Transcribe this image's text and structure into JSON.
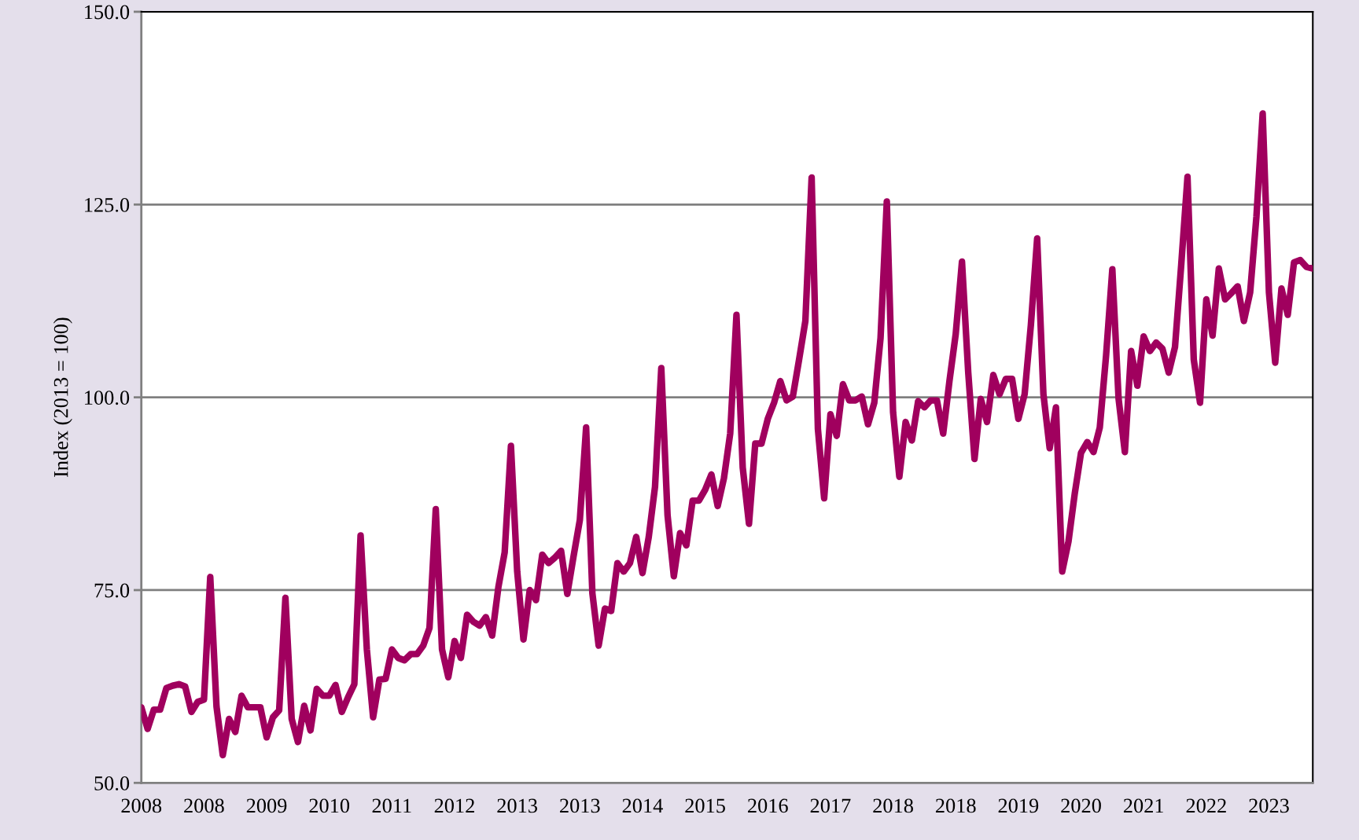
{
  "chart_data": {
    "type": "line",
    "ylabel": "Index (2013 = 100)",
    "categories": [
      "2008",
      null,
      null,
      null,
      null,
      null,
      null,
      null,
      null,
      null,
      "2008",
      null,
      null,
      null,
      null,
      null,
      null,
      null,
      null,
      null,
      "2009",
      null,
      null,
      null,
      null,
      null,
      null,
      null,
      null,
      null,
      "2010",
      null,
      null,
      null,
      null,
      null,
      null,
      null,
      null,
      null,
      "2011",
      null,
      null,
      null,
      null,
      null,
      null,
      null,
      null,
      null,
      "2012",
      null,
      null,
      null,
      null,
      null,
      null,
      null,
      null,
      null,
      "2013",
      null,
      null,
      null,
      null,
      null,
      null,
      null,
      null,
      null,
      "2013",
      null,
      null,
      null,
      null,
      null,
      null,
      null,
      null,
      null,
      "2014",
      null,
      null,
      null,
      null,
      null,
      null,
      null,
      null,
      null,
      "2015",
      null,
      null,
      null,
      null,
      null,
      null,
      null,
      null,
      null,
      "2016",
      null,
      null,
      null,
      null,
      null,
      null,
      null,
      null,
      null,
      "2017",
      null,
      null,
      null,
      null,
      null,
      null,
      null,
      null,
      null,
      "2018",
      null,
      null,
      null,
      null,
      null,
      null,
      null,
      null,
      null,
      "2018",
      null,
      null,
      null,
      null,
      null,
      null,
      null,
      null,
      null,
      "2019",
      null,
      null,
      null,
      null,
      null,
      null,
      null,
      null,
      null,
      "2020",
      null,
      null,
      null,
      null,
      null,
      null,
      null,
      null,
      null,
      "2021",
      null,
      null,
      null,
      null,
      null,
      null,
      null,
      null,
      null,
      "2022",
      null,
      null,
      null,
      null,
      null,
      null,
      null,
      null,
      null,
      "2023",
      null,
      null,
      null,
      null,
      null,
      null,
      null
    ],
    "series": [
      {
        "color": "#a0005e",
        "values": [
          59.8,
          57.0,
          59.5,
          59.5,
          62.3,
          62.6,
          62.8,
          62.5,
          59.2,
          60.5,
          60.8,
          76.7,
          59.9,
          53.6,
          58.3,
          56.6,
          61.3,
          59.8,
          59.8,
          59.8,
          55.9,
          58.5,
          59.4,
          74.0,
          58.3,
          55.3,
          60.0,
          56.8,
          62.2,
          61.3,
          61.3,
          62.7,
          59.2,
          61.1,
          62.8,
          82.1,
          67.3,
          58.5,
          63.4,
          63.5,
          67.3,
          66.2,
          65.9,
          66.7,
          66.7,
          67.8,
          70.1,
          85.5,
          67.3,
          63.7,
          68.4,
          66.2,
          71.8,
          70.9,
          70.4,
          71.5,
          69.1,
          75.4,
          79.9,
          93.7,
          77.4,
          68.6,
          75.0,
          73.7,
          79.6,
          78.5,
          79.2,
          80.1,
          74.5,
          79.4,
          84.1,
          96.1,
          74.6,
          67.8,
          72.6,
          72.3,
          78.5,
          77.4,
          78.5,
          81.9,
          77.2,
          81.9,
          88.4,
          103.8,
          84.7,
          76.8,
          82.4,
          80.8,
          86.6,
          86.6,
          88.0,
          90.0,
          85.9,
          89.5,
          95.3,
          110.7,
          90.9,
          83.6,
          94.0,
          94.0,
          97.2,
          99.3,
          102.1,
          99.6,
          100.1,
          104.9,
          109.9,
          128.5,
          95.9,
          86.9,
          97.8,
          95.0,
          101.7,
          99.6,
          99.6,
          100.1,
          96.5,
          99.3,
          107.7,
          125.4,
          98.1,
          89.7,
          96.8,
          94.4,
          99.5,
          98.7,
          99.6,
          99.6,
          95.3,
          102.1,
          108.2,
          117.6,
          103.2,
          92.0,
          99.8,
          96.8,
          102.9,
          100.4,
          102.4,
          102.4,
          97.2,
          100.4,
          109.4,
          120.6,
          100.4,
          93.4,
          98.7,
          77.4,
          81.3,
          87.5,
          92.8,
          94.2,
          92.9,
          96.1,
          105.4,
          116.6,
          99.8,
          92.9,
          106.0,
          101.5,
          107.9,
          106.0,
          107.1,
          106.3,
          103.2,
          106.5,
          117.2,
          128.6,
          104.9,
          99.3,
          112.7,
          108.0,
          116.7,
          112.7,
          113.5,
          114.4,
          109.9,
          113.6,
          123.4,
          136.8,
          113.6,
          104.5,
          114.1,
          110.7,
          117.5,
          117.8,
          116.9,
          116.7
        ]
      }
    ],
    "ylim": [
      50,
      150
    ],
    "yticks": [
      {
        "value": 50,
        "label": "50.0"
      },
      {
        "value": 75,
        "label": "75.0"
      },
      {
        "value": 100,
        "label": "100.0"
      },
      {
        "value": 125,
        "label": "125.0"
      },
      {
        "value": 150,
        "label": "150.0"
      }
    ],
    "grid": "y",
    "line_style": "solid",
    "marker": "none"
  }
}
